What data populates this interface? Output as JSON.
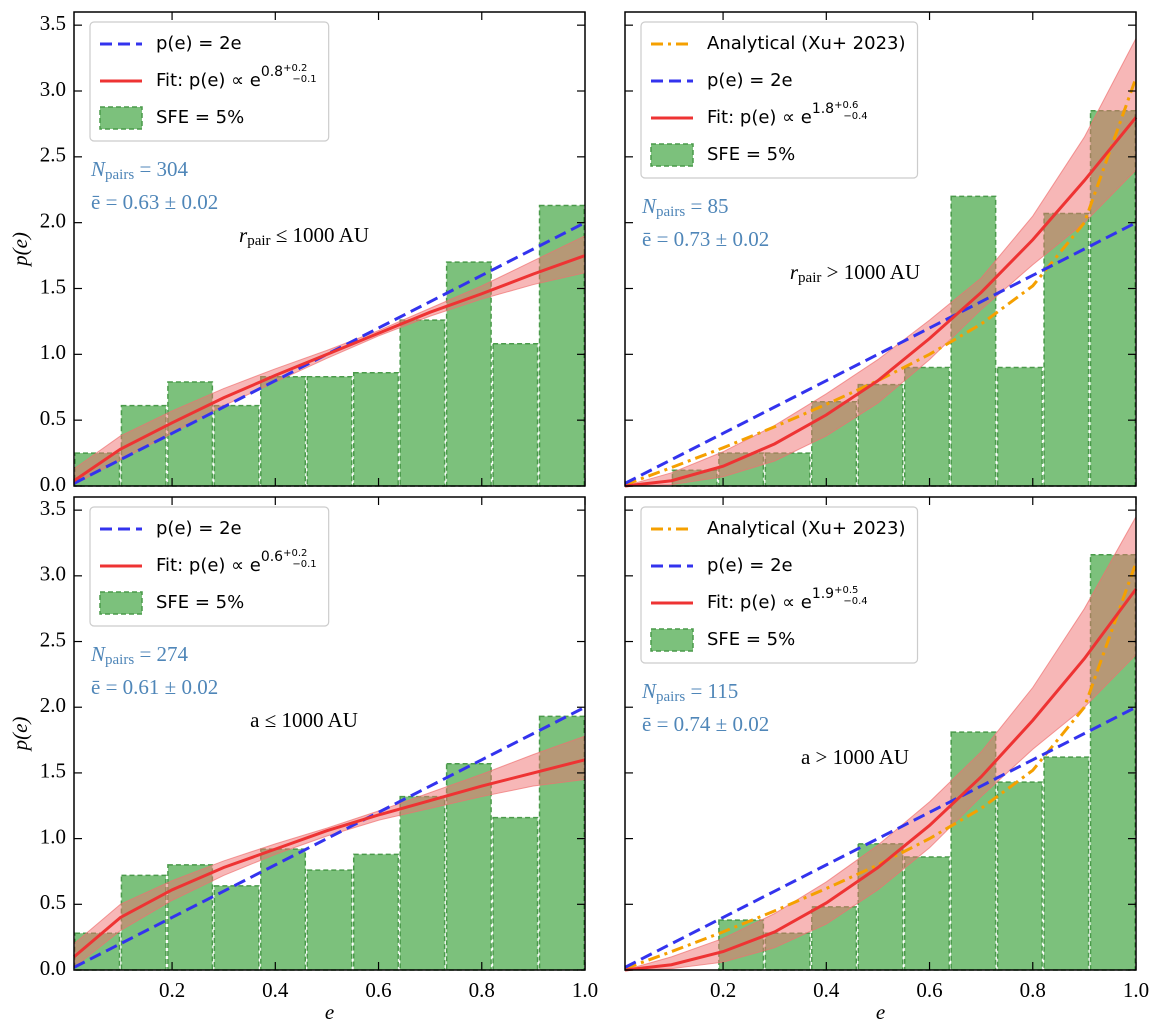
{
  "chart_data": [
    {
      "type": "histogram",
      "ylabel": "p(e)",
      "xlim": [
        0.01,
        1.0
      ],
      "ylim": [
        0,
        3.6
      ],
      "xticks": [
        0.2,
        0.4,
        0.6,
        0.8,
        1.0
      ],
      "yticks": [
        {
          "value": 0,
          "label": "0.0"
        },
        {
          "value": 0.5,
          "label": "0.5"
        },
        {
          "value": 1,
          "label": "1.0"
        },
        {
          "value": 1.5,
          "label": "1.5"
        },
        {
          "value": 2,
          "label": "2.0"
        },
        {
          "value": 2.5,
          "label": "2.5"
        },
        {
          "value": 3,
          "label": "3.0"
        },
        {
          "value": 3.5,
          "label": "3.5"
        }
      ],
      "legend": "upper left",
      "series": [
        {
          "type": "line",
          "name": "p(e) = 2e",
          "color": "#3333ee",
          "dash": "dashed",
          "x": [
            0.01,
            0.1,
            0.2,
            0.3,
            0.4,
            0.5,
            0.6,
            0.7,
            0.8,
            0.9,
            1.0
          ],
          "values": [
            0.02,
            0.2,
            0.4,
            0.6,
            0.8,
            1.0,
            1.2,
            1.4,
            1.6,
            1.8,
            2.0
          ]
        },
        {
          "type": "line",
          "name": "Fit: p(e) ∝ e",
          "exponent": {
            "value": "0.8",
            "upper": "+0.2",
            "lower": "−0.1"
          },
          "color": "#ee3333",
          "dash": "solid",
          "x": [
            0.01,
            0.1,
            0.2,
            0.3,
            0.4,
            0.5,
            0.6,
            0.7,
            0.8,
            0.9,
            1.0
          ],
          "values": [
            0.04,
            0.28,
            0.48,
            0.67,
            0.84,
            1.0,
            1.16,
            1.32,
            1.46,
            1.61,
            1.75
          ],
          "band": {
            "color": "#f07070",
            "lower": [
              0.01,
              0.2,
              0.4,
              0.61,
              0.79,
              0.97,
              1.14,
              1.29,
              1.42,
              1.53,
              1.62
            ],
            "upper": [
              0.13,
              0.38,
              0.57,
              0.74,
              0.89,
              1.03,
              1.18,
              1.35,
              1.52,
              1.71,
              1.9
            ]
          }
        },
        {
          "type": "histogram",
          "name": "SFE = 5%",
          "color": "#7cc17c",
          "edgecolor": "#4a9a4a",
          "bins": [
            0.01,
            0.1,
            0.19,
            0.28,
            0.37,
            0.46,
            0.55,
            0.64,
            0.73,
            0.82,
            0.91,
            1.0
          ],
          "values": [
            0.25,
            0.61,
            0.79,
            0.61,
            0.83,
            0.83,
            0.86,
            1.26,
            1.7,
            1.08,
            2.13
          ]
        }
      ],
      "annotations": [
        {
          "text": "N",
          "sub": "pairs",
          "tail": " = 304",
          "color": "#4f86b8"
        },
        {
          "text": "ē = 0.63 ± 0.02",
          "color": "#4f86b8"
        },
        {
          "text": "r",
          "sub": "pair",
          "tail": " ≤ 1000 AU",
          "color": "#000000"
        }
      ]
    },
    {
      "type": "histogram",
      "xlim": [
        0.01,
        1.0
      ],
      "ylim": [
        0,
        3.6
      ],
      "xticks": [
        0.2,
        0.4,
        0.6,
        0.8,
        1.0
      ],
      "yticks": [
        0,
        0.5,
        1,
        1.5,
        2,
        2.5,
        3,
        3.5
      ],
      "legend": "upper left",
      "series": [
        {
          "type": "line",
          "name": "Analytical (Xu+ 2023)",
          "color": "#f5a000",
          "dash": "dashdot",
          "x": [
            0.01,
            0.1,
            0.2,
            0.3,
            0.4,
            0.5,
            0.6,
            0.7,
            0.8,
            0.9,
            1.0
          ],
          "values": [
            0.01,
            0.14,
            0.29,
            0.45,
            0.62,
            0.8,
            1.0,
            1.23,
            1.52,
            2.0,
            3.1
          ]
        },
        {
          "type": "line",
          "name": "p(e) = 2e",
          "color": "#3333ee",
          "dash": "dashed",
          "x": [
            0.01,
            0.1,
            0.2,
            0.3,
            0.4,
            0.5,
            0.6,
            0.7,
            0.8,
            0.9,
            1.0
          ],
          "values": [
            0.02,
            0.2,
            0.4,
            0.6,
            0.8,
            1.0,
            1.2,
            1.4,
            1.6,
            1.8,
            2.0
          ]
        },
        {
          "type": "line",
          "name": "Fit: p(e) ∝ e",
          "exponent": {
            "value": "1.8",
            "upper": "+0.6",
            "lower": "−0.4"
          },
          "color": "#ee3333",
          "dash": "solid",
          "x": [
            0.01,
            0.1,
            0.2,
            0.3,
            0.4,
            0.5,
            0.6,
            0.7,
            0.8,
            0.9,
            1.0
          ],
          "values": [
            0.0,
            0.04,
            0.15,
            0.32,
            0.54,
            0.8,
            1.12,
            1.47,
            1.87,
            2.32,
            2.8
          ],
          "band": {
            "color": "#f07070",
            "lower": [
              0,
              0.01,
              0.07,
              0.19,
              0.38,
              0.63,
              0.96,
              1.34,
              1.68,
              2.0,
              2.4
            ],
            "upper": [
              0,
              0.1,
              0.26,
              0.46,
              0.7,
              0.96,
              1.26,
              1.58,
              2.05,
              2.65,
              3.4
            ]
          }
        },
        {
          "type": "histogram",
          "name": "SFE = 5%",
          "color": "#7cc17c",
          "edgecolor": "#4a9a4a",
          "bins": [
            0.01,
            0.1,
            0.19,
            0.28,
            0.37,
            0.46,
            0.55,
            0.64,
            0.73,
            0.82,
            0.91,
            1.0
          ],
          "values": [
            0,
            0.12,
            0.25,
            0.25,
            0.64,
            0.77,
            0.9,
            2.2,
            0.9,
            2.07,
            2.85
          ]
        }
      ],
      "annotations": [
        {
          "text": "N",
          "sub": "pairs",
          "tail": " = 85",
          "color": "#4f86b8"
        },
        {
          "text": "ē = 0.73 ± 0.02",
          "color": "#4f86b8"
        },
        {
          "text": "r",
          "sub": "pair",
          "tail": " > 1000 AU",
          "color": "#000000"
        }
      ]
    },
    {
      "type": "histogram",
      "ylabel": "p(e)",
      "xlabel": "e",
      "xlim": [
        0.01,
        1.0
      ],
      "ylim": [
        0,
        3.6
      ],
      "xticks": [
        0.2,
        0.4,
        0.6,
        0.8,
        {
          "value": 1,
          "label": "1.0"
        }
      ],
      "yticks": [
        {
          "value": 0,
          "label": "0.0"
        },
        {
          "value": 0.5,
          "label": "0.5"
        },
        {
          "value": 1,
          "label": "1.0"
        },
        {
          "value": 1.5,
          "label": "1.5"
        },
        {
          "value": 2,
          "label": "2.0"
        },
        {
          "value": 2.5,
          "label": "2.5"
        },
        {
          "value": 3,
          "label": "3.0"
        },
        {
          "value": 3.5,
          "label": "3.5"
        }
      ],
      "legend": "upper left",
      "series": [
        {
          "type": "line",
          "name": "p(e) = 2e",
          "color": "#3333ee",
          "dash": "dashed",
          "x": [
            0.01,
            0.1,
            0.2,
            0.3,
            0.4,
            0.5,
            0.6,
            0.7,
            0.8,
            0.9,
            1.0
          ],
          "values": [
            0.02,
            0.2,
            0.4,
            0.6,
            0.8,
            1.0,
            1.2,
            1.4,
            1.6,
            1.8,
            2.0
          ]
        },
        {
          "type": "line",
          "name": "Fit: p(e) ∝ e",
          "exponent": {
            "value": "0.6",
            "upper": "+0.2",
            "lower": "−0.1"
          },
          "color": "#ee3333",
          "dash": "solid",
          "x": [
            0.01,
            0.1,
            0.2,
            0.3,
            0.4,
            0.5,
            0.6,
            0.7,
            0.8,
            0.9,
            1.0
          ],
          "values": [
            0.1,
            0.4,
            0.61,
            0.78,
            0.92,
            1.06,
            1.18,
            1.29,
            1.4,
            1.5,
            1.6
          ],
          "band": {
            "color": "#f07070",
            "lower": [
              0.02,
              0.3,
              0.53,
              0.72,
              0.88,
              1.02,
              1.14,
              1.23,
              1.32,
              1.4,
              1.45
            ],
            "upper": [
              0.2,
              0.5,
              0.68,
              0.83,
              0.96,
              1.08,
              1.21,
              1.35,
              1.49,
              1.64,
              1.78
            ]
          }
        },
        {
          "type": "histogram",
          "name": "SFE = 5%",
          "color": "#7cc17c",
          "edgecolor": "#4a9a4a",
          "bins": [
            0.01,
            0.1,
            0.19,
            0.28,
            0.37,
            0.46,
            0.55,
            0.64,
            0.73,
            0.82,
            0.91,
            1.0
          ],
          "values": [
            0.28,
            0.72,
            0.8,
            0.64,
            0.92,
            0.76,
            0.88,
            1.32,
            1.57,
            1.16,
            1.93
          ]
        }
      ],
      "annotations": [
        {
          "text": "N",
          "sub": "pairs",
          "tail": " = 274",
          "color": "#4f86b8"
        },
        {
          "text": "ē = 0.61 ± 0.02",
          "color": "#4f86b8"
        },
        {
          "text": "a ≤ 1000 AU",
          "color": "#000000"
        }
      ]
    },
    {
      "type": "histogram",
      "xlabel": "e",
      "xlim": [
        0.01,
        1.0
      ],
      "ylim": [
        0,
        3.6
      ],
      "xticks": [
        0.2,
        0.4,
        0.6,
        0.8,
        {
          "value": 1,
          "label": "1.0"
        }
      ],
      "yticks": [
        0,
        0.5,
        1,
        1.5,
        2,
        2.5,
        3,
        3.5
      ],
      "legend": "upper left",
      "series": [
        {
          "type": "line",
          "name": "Analytical (Xu+ 2023)",
          "color": "#f5a000",
          "dash": "dashdot",
          "x": [
            0.01,
            0.1,
            0.2,
            0.3,
            0.4,
            0.5,
            0.6,
            0.7,
            0.8,
            0.9,
            1.0
          ],
          "values": [
            0.01,
            0.14,
            0.29,
            0.45,
            0.62,
            0.8,
            1.0,
            1.23,
            1.52,
            2.0,
            3.1
          ]
        },
        {
          "type": "line",
          "name": "p(e) = 2e",
          "color": "#3333ee",
          "dash": "dashed",
          "x": [
            0.01,
            0.1,
            0.2,
            0.3,
            0.4,
            0.5,
            0.6,
            0.7,
            0.8,
            0.9,
            1.0
          ],
          "values": [
            0.02,
            0.2,
            0.4,
            0.6,
            0.8,
            1.0,
            1.2,
            1.4,
            1.6,
            1.8,
            2.0
          ]
        },
        {
          "type": "line",
          "name": "Fit: p(e) ∝ e",
          "exponent": {
            "value": "1.9",
            "upper": "+0.5",
            "lower": "−0.4"
          },
          "color": "#ee3333",
          "dash": "solid",
          "x": [
            0.01,
            0.1,
            0.2,
            0.3,
            0.4,
            0.5,
            0.6,
            0.7,
            0.8,
            0.9,
            1.0
          ],
          "values": [
            0.0,
            0.04,
            0.14,
            0.29,
            0.51,
            0.78,
            1.1,
            1.47,
            1.9,
            2.37,
            2.9
          ],
          "band": {
            "color": "#f07070",
            "lower": [
              0,
              0.01,
              0.06,
              0.17,
              0.35,
              0.61,
              0.93,
              1.32,
              1.68,
              2.0,
              2.4
            ],
            "upper": [
              0,
              0.1,
              0.24,
              0.43,
              0.67,
              0.95,
              1.28,
              1.66,
              2.15,
              2.75,
              3.45
            ]
          }
        },
        {
          "type": "histogram",
          "name": "SFE = 5%",
          "color": "#7cc17c",
          "edgecolor": "#4a9a4a",
          "bins": [
            0.01,
            0.1,
            0.19,
            0.28,
            0.37,
            0.46,
            0.55,
            0.64,
            0.73,
            0.82,
            0.91,
            1.0
          ],
          "values": [
            0,
            0,
            0.38,
            0.28,
            0.48,
            0.96,
            0.86,
            1.81,
            1.43,
            1.62,
            3.16
          ]
        }
      ],
      "annotations": [
        {
          "text": "N",
          "sub": "pairs",
          "tail": " = 115",
          "color": "#4f86b8"
        },
        {
          "text": "ē = 0.74 ± 0.02",
          "color": "#4f86b8"
        },
        {
          "text": "a > 1000 AU",
          "color": "#000000"
        }
      ]
    }
  ]
}
